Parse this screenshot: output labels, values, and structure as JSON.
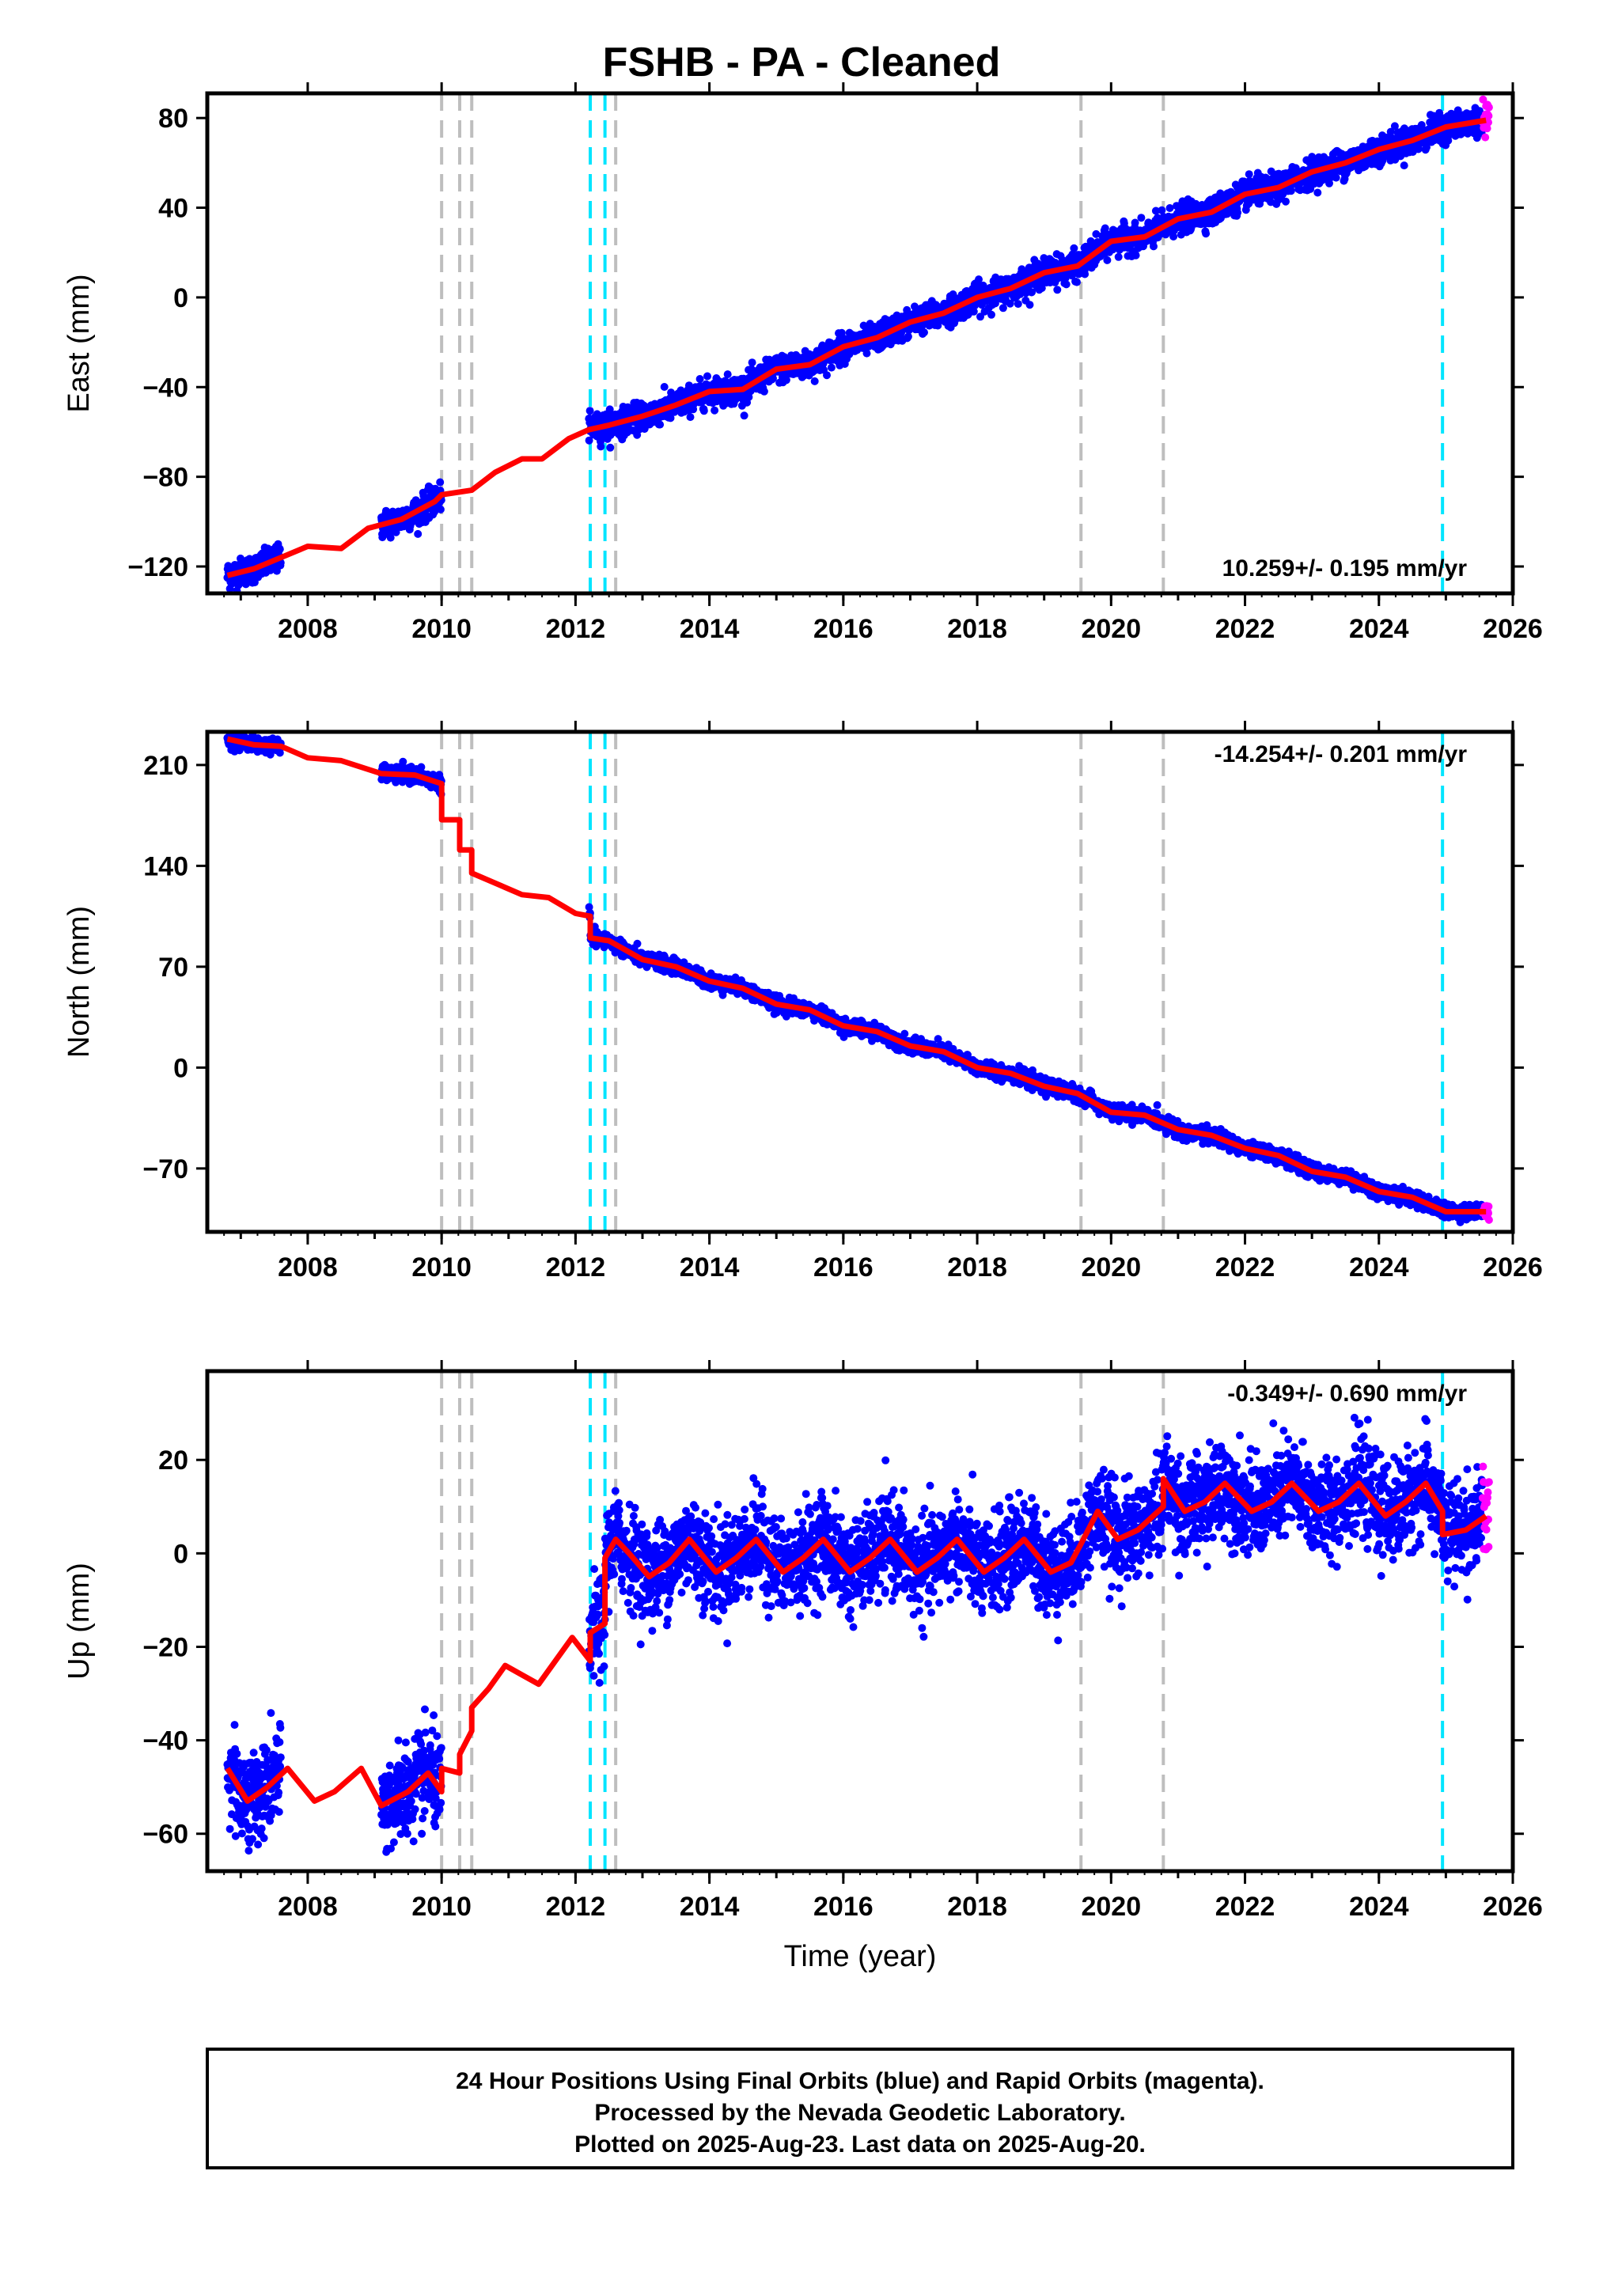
{
  "title": "FSHB  - PA - Cleaned",
  "colors": {
    "final_orbits": "#0000ff",
    "rapid_orbits": "#ff00ff",
    "model": "#ff0000",
    "equipment_change": "#bebebe",
    "earthquake": "#00e5ff"
  },
  "footer": {
    "line1": "24 Hour Positions Using Final Orbits (blue) and Rapid Orbits (magenta).",
    "line2": "Processed by the Nevada Geodetic Laboratory.",
    "line3": "Plotted on 2025-Aug-23. Last data on 2025-Aug-20."
  },
  "chart_data": [
    {
      "type": "scatter",
      "component": "east",
      "ylabel": "East (mm)",
      "xlabel": "",
      "rate": "10.259+/- 0.195 mm/yr",
      "xlim": [
        2006.5,
        2026
      ],
      "ylim": [
        -132,
        91
      ],
      "xticks": [
        "2008",
        "2010",
        "2012",
        "2014",
        "2016",
        "2018",
        "2020",
        "2022",
        "2024",
        "2026"
      ],
      "yticks": [
        "-120",
        "-80",
        "-40",
        "0",
        "40",
        "80"
      ],
      "grey_lines": [
        2010.0,
        2010.27,
        2010.45,
        2019.55,
        2020.78
      ],
      "cyan_lines": [
        2012.22,
        2012.44,
        2024.95
      ],
      "grey_line_after_cyan": 2012.6,
      "model": [
        [
          2006.8,
          -124
        ],
        [
          2007.2,
          -121
        ],
        [
          2007.6,
          -116
        ],
        [
          2008.0,
          -111
        ],
        [
          2008.5,
          -112
        ],
        [
          2008.9,
          -103
        ],
        [
          2009.4,
          -99
        ],
        [
          2009.9,
          -91
        ],
        [
          2010.0,
          -88
        ],
        [
          2010.45,
          -86
        ],
        [
          2010.8,
          -78
        ],
        [
          2011.2,
          -72
        ],
        [
          2011.5,
          -72
        ],
        [
          2011.9,
          -63
        ],
        [
          2012.2,
          -59
        ],
        [
          2012.5,
          -57
        ],
        [
          2013.0,
          -53
        ],
        [
          2013.5,
          -48
        ],
        [
          2014.0,
          -42
        ],
        [
          2014.5,
          -41
        ],
        [
          2015.0,
          -32
        ],
        [
          2015.5,
          -30
        ],
        [
          2016.0,
          -22
        ],
        [
          2016.5,
          -18
        ],
        [
          2017.0,
          -11
        ],
        [
          2017.5,
          -7
        ],
        [
          2018.0,
          0
        ],
        [
          2018.5,
          4
        ],
        [
          2019.0,
          11
        ],
        [
          2019.5,
          14
        ],
        [
          2020.0,
          25
        ],
        [
          2020.5,
          27
        ],
        [
          2021.0,
          35
        ],
        [
          2021.5,
          38
        ],
        [
          2022.0,
          46
        ],
        [
          2022.5,
          49
        ],
        [
          2023.0,
          56
        ],
        [
          2023.5,
          60
        ],
        [
          2024.0,
          66
        ],
        [
          2024.5,
          70
        ],
        [
          2025.0,
          76
        ],
        [
          2025.6,
          79
        ]
      ],
      "final_segments": [
        [
          2006.8,
          2007.6
        ],
        [
          2009.1,
          2010.0
        ],
        [
          2012.2,
          2025.55
        ]
      ],
      "rapid_segment": [
        2025.55,
        2025.65
      ],
      "scatter_sigma": 3
    },
    {
      "type": "scatter",
      "component": "north",
      "ylabel": "North (mm)",
      "xlabel": "",
      "rate": "-14.254+/- 0.201 mm/yr",
      "xlim": [
        2006.5,
        2026
      ],
      "ylim": [
        -114,
        233
      ],
      "xticks": [
        "2008",
        "2010",
        "2012",
        "2014",
        "2016",
        "2018",
        "2020",
        "2022",
        "2024",
        "2026"
      ],
      "yticks": [
        "-70",
        "0",
        "70",
        "140",
        "210"
      ],
      "grey_lines": [
        2010.0,
        2010.27,
        2010.45,
        2019.55,
        2020.78
      ],
      "cyan_lines": [
        2012.22,
        2012.44,
        2024.95
      ],
      "grey_line_after_cyan": 2012.6,
      "model": [
        [
          2006.8,
          228
        ],
        [
          2007.2,
          224
        ],
        [
          2007.6,
          223
        ],
        [
          2008.0,
          215
        ],
        [
          2008.5,
          213
        ],
        [
          2009.1,
          204
        ],
        [
          2009.6,
          203
        ],
        [
          2010.0,
          197
        ],
        [
          2010.0,
          172
        ],
        [
          2010.27,
          172
        ],
        [
          2010.27,
          151
        ],
        [
          2010.45,
          151
        ],
        [
          2010.45,
          135
        ],
        [
          2010.8,
          128
        ],
        [
          2011.2,
          120
        ],
        [
          2011.6,
          118
        ],
        [
          2012.0,
          107
        ],
        [
          2012.22,
          105
        ],
        [
          2012.22,
          90
        ],
        [
          2012.5,
          88
        ],
        [
          2013.0,
          75
        ],
        [
          2013.5,
          70
        ],
        [
          2014.0,
          60
        ],
        [
          2014.5,
          55
        ],
        [
          2015.0,
          44
        ],
        [
          2015.5,
          40
        ],
        [
          2016.0,
          29
        ],
        [
          2016.5,
          25
        ],
        [
          2017.0,
          15
        ],
        [
          2017.5,
          11
        ],
        [
          2018.0,
          0
        ],
        [
          2018.5,
          -4
        ],
        [
          2019.0,
          -13
        ],
        [
          2019.5,
          -18
        ],
        [
          2020.0,
          -31
        ],
        [
          2020.5,
          -33
        ],
        [
          2021.0,
          -43
        ],
        [
          2021.5,
          -47
        ],
        [
          2022.0,
          -56
        ],
        [
          2022.5,
          -61
        ],
        [
          2023.0,
          -72
        ],
        [
          2023.5,
          -76
        ],
        [
          2024.0,
          -86
        ],
        [
          2024.5,
          -90
        ],
        [
          2025.0,
          -100
        ],
        [
          2025.6,
          -100
        ]
      ],
      "final_segments": [
        [
          2006.8,
          2007.6
        ],
        [
          2009.1,
          2010.0
        ],
        [
          2012.2,
          2025.55
        ]
      ],
      "rapid_segment": [
        2025.55,
        2025.65
      ],
      "scatter_sigma": 2.5
    },
    {
      "type": "scatter",
      "component": "up",
      "ylabel": "Up (mm)",
      "xlabel": "Time (year)",
      "rate": "-0.349+/- 0.690 mm/yr",
      "xlim": [
        2006.5,
        2026
      ],
      "ylim": [
        -68,
        39
      ],
      "xticks": [
        "2008",
        "2010",
        "2012",
        "2014",
        "2016",
        "2018",
        "2020",
        "2022",
        "2024",
        "2026"
      ],
      "yticks": [
        "-60",
        "-40",
        "-20",
        "0",
        "20"
      ],
      "grey_lines": [
        2010.0,
        2010.27,
        2010.45,
        2019.55,
        2020.78
      ],
      "cyan_lines": [
        2012.22,
        2012.44,
        2024.95
      ],
      "grey_line_after_cyan": 2012.6,
      "model": [
        [
          2006.8,
          -46
        ],
        [
          2007.1,
          -53
        ],
        [
          2007.4,
          -50
        ],
        [
          2007.7,
          -46
        ],
        [
          2008.1,
          -53
        ],
        [
          2008.4,
          -51
        ],
        [
          2008.8,
          -46
        ],
        [
          2009.1,
          -54
        ],
        [
          2009.5,
          -51
        ],
        [
          2009.8,
          -47
        ],
        [
          2010.0,
          -51
        ],
        [
          2010.0,
          -46
        ],
        [
          2010.27,
          -47
        ],
        [
          2010.27,
          -43
        ],
        [
          2010.45,
          -38
        ],
        [
          2010.45,
          -33
        ],
        [
          2010.7,
          -29
        ],
        [
          2010.95,
          -24
        ],
        [
          2011.2,
          -26
        ],
        [
          2011.45,
          -28
        ],
        [
          2011.7,
          -23
        ],
        [
          2011.95,
          -18
        ],
        [
          2012.22,
          -23
        ],
        [
          2012.22,
          -17
        ],
        [
          2012.44,
          -15
        ],
        [
          2012.44,
          -1
        ],
        [
          2012.6,
          3
        ],
        [
          2012.8,
          0
        ],
        [
          2013.1,
          -5
        ],
        [
          2013.4,
          -2
        ],
        [
          2013.7,
          3
        ],
        [
          2014.1,
          -4
        ],
        [
          2014.4,
          -1
        ],
        [
          2014.7,
          3
        ],
        [
          2015.1,
          -4
        ],
        [
          2015.4,
          -1
        ],
        [
          2015.7,
          3
        ],
        [
          2016.1,
          -4
        ],
        [
          2016.4,
          -1
        ],
        [
          2016.7,
          3
        ],
        [
          2017.1,
          -4
        ],
        [
          2017.4,
          -1
        ],
        [
          2017.7,
          3
        ],
        [
          2018.1,
          -4
        ],
        [
          2018.4,
          -1
        ],
        [
          2018.7,
          3
        ],
        [
          2019.1,
          -4
        ],
        [
          2019.4,
          -2
        ],
        [
          2019.55,
          2
        ],
        [
          2019.8,
          9
        ],
        [
          2020.1,
          3
        ],
        [
          2020.4,
          5
        ],
        [
          2020.78,
          10
        ],
        [
          2020.78,
          16
        ],
        [
          2021.1,
          9
        ],
        [
          2021.4,
          11
        ],
        [
          2021.7,
          15
        ],
        [
          2022.1,
          9
        ],
        [
          2022.4,
          11
        ],
        [
          2022.7,
          15
        ],
        [
          2023.1,
          9
        ],
        [
          2023.4,
          11
        ],
        [
          2023.7,
          15
        ],
        [
          2024.1,
          8
        ],
        [
          2024.4,
          11
        ],
        [
          2024.7,
          15
        ],
        [
          2024.95,
          9
        ],
        [
          2024.95,
          4
        ],
        [
          2025.3,
          5
        ],
        [
          2025.6,
          8
        ]
      ],
      "final_segments": [
        [
          2006.8,
          2007.6
        ],
        [
          2009.1,
          2010.0
        ],
        [
          2012.2,
          2025.55
        ]
      ],
      "rapid_segment": [
        2025.55,
        2025.65
      ],
      "scatter_sigma": 5
    }
  ]
}
